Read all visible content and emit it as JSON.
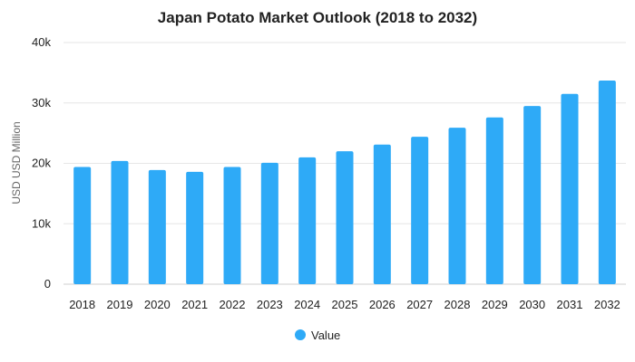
{
  "chart_data": {
    "type": "bar",
    "title": "Japan Potato Market Outlook (2018 to 2032)",
    "xlabel": "",
    "ylabel": "USD USD Million",
    "categories": [
      "2018",
      "2019",
      "2020",
      "2021",
      "2022",
      "2023",
      "2024",
      "2025",
      "2026",
      "2027",
      "2028",
      "2029",
      "2030",
      "2031",
      "2032"
    ],
    "series": [
      {
        "name": "Value",
        "color": "#2EAAF7",
        "values": [
          19400,
          20400,
          18900,
          18600,
          19400,
          20100,
          21000,
          22000,
          23100,
          24400,
          25900,
          27600,
          29500,
          31500,
          33700
        ]
      }
    ],
    "ylim": [
      0,
      40000
    ],
    "yticks": [
      0,
      10000,
      20000,
      30000,
      40000
    ],
    "ytick_labels": [
      "0",
      "10k",
      "20k",
      "30k",
      "40k"
    ],
    "grid": true,
    "legend": "bottom-center"
  }
}
